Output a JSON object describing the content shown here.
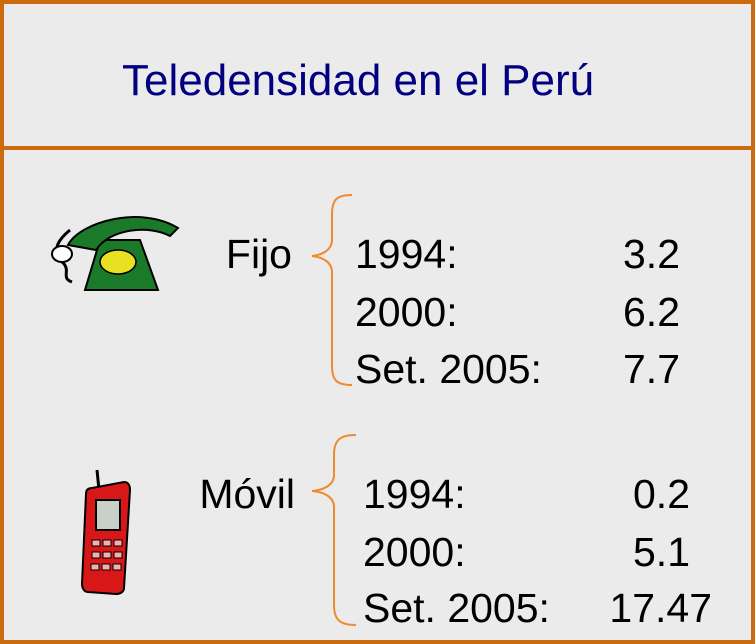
{
  "header": {
    "title": "Teledensidad en el Perú"
  },
  "groups": [
    {
      "label": "Fijo",
      "rows": [
        [
          "1994:",
          "3.2"
        ],
        [
          "2000:",
          "6.2"
        ],
        [
          "Set. 2005:",
          "7.7"
        ]
      ]
    },
    {
      "label": "Móvil",
      "rows": [
        [
          "1994:",
          "0.2"
        ],
        [
          "2000:",
          "5.1"
        ],
        [
          "Set. 2005:",
          "17.47"
        ]
      ]
    }
  ]
}
